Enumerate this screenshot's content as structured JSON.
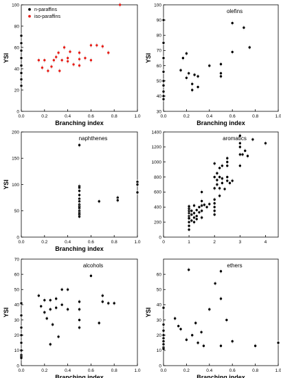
{
  "chart_data": [
    {
      "type": "scatter",
      "title": "",
      "xlabel": "Branching index",
      "ylabel": "YSI",
      "xlim": [
        0,
        1.0
      ],
      "ylim": [
        0,
        100
      ],
      "xticks": [
        "0.0",
        "0.2",
        "0.4",
        "0.6",
        "0.8",
        "1.0"
      ],
      "yticks": [
        "0",
        "20",
        "40",
        "60",
        "80",
        "100"
      ],
      "legend_position": "top-left",
      "series": [
        {
          "name": "n-paraffins",
          "color": "#000000",
          "x": [
            0,
            0,
            0,
            0,
            0,
            0,
            0,
            0
          ],
          "y": [
            24,
            30,
            36,
            43,
            50,
            57,
            64,
            71
          ]
        },
        {
          "name": "iso-paraffins",
          "color": "#e8201a",
          "x": [
            0.15,
            0.18,
            0.2,
            0.23,
            0.26,
            0.28,
            0.3,
            0.32,
            0.33,
            0.35,
            0.37,
            0.4,
            0.4,
            0.42,
            0.45,
            0.5,
            0.5,
            0.5,
            0.55,
            0.6,
            0.6,
            0.65,
            0.7,
            0.75,
            0.85
          ],
          "y": [
            48,
            41,
            48,
            38,
            42,
            48,
            51,
            55,
            38,
            48,
            60,
            47,
            50,
            56,
            44,
            43,
            49,
            55,
            50,
            48,
            62,
            62,
            61,
            55,
            100
          ]
        }
      ]
    },
    {
      "type": "scatter",
      "title": "olefins",
      "xlabel": "Branching index",
      "ylabel": "YSI",
      "xlim": [
        0,
        1.0
      ],
      "ylim": [
        30,
        100
      ],
      "xticks": [
        "0.0",
        "0.2",
        "0.4",
        "0.6",
        "0.8",
        "1.0"
      ],
      "yticks": [
        "30",
        "40",
        "50",
        "60",
        "70",
        "80",
        "90",
        "100"
      ],
      "series": [
        {
          "name": "",
          "color": "#000000",
          "x": [
            0,
            0,
            0,
            0,
            0,
            0,
            0,
            0,
            0,
            0.15,
            0.17,
            0.2,
            0.2,
            0.22,
            0.25,
            0.25,
            0.27,
            0.3,
            0.3,
            0.4,
            0.5,
            0.5,
            0.5,
            0.6,
            0.6,
            0.7,
            0.75
          ],
          "y": [
            90,
            75,
            65,
            56,
            50,
            47,
            43,
            40,
            38,
            57,
            65,
            68,
            52,
            55,
            48,
            44,
            54,
            53,
            46,
            60,
            61,
            55,
            53,
            88,
            69,
            85,
            72
          ]
        }
      ]
    },
    {
      "type": "scatter",
      "title": "naphthenes",
      "xlabel": "Branching index",
      "ylabel": "YSI",
      "xlim": [
        0,
        1.0
      ],
      "ylim": [
        0,
        200
      ],
      "xticks": [
        "0.0",
        "0.2",
        "0.4",
        "0.6",
        "0.8",
        "1.0"
      ],
      "yticks": [
        "0",
        "50",
        "100",
        "150",
        "200"
      ],
      "series": [
        {
          "name": "",
          "color": "#000000",
          "x": [
            0.5,
            0.5,
            0.5,
            0.5,
            0.5,
            0.5,
            0.5,
            0.5,
            0.5,
            0.5,
            0.5,
            0.5,
            0.5,
            0.5,
            0.67,
            0.83,
            0.83,
            1.0,
            1.0,
            1.0
          ],
          "y": [
            175,
            97,
            94,
            88,
            80,
            73,
            68,
            62,
            58,
            55,
            50,
            46,
            43,
            39,
            68,
            75,
            70,
            105,
            100,
            85
          ]
        }
      ]
    },
    {
      "type": "scatter",
      "title": "aromatics",
      "xlabel": "",
      "ylabel": "",
      "xlim": [
        0,
        4.5
      ],
      "ylim": [
        0,
        1400
      ],
      "xticks": [
        "0",
        "1",
        "2",
        "3",
        "4"
      ],
      "yticks": [
        "0",
        "200",
        "400",
        "600",
        "800",
        "1000",
        "1200",
        "1400"
      ],
      "series": [
        {
          "name": "",
          "color": "#000000",
          "x": [
            1.0,
            1.0,
            1.0,
            1.0,
            1.0,
            1.0,
            1.0,
            1.0,
            1.0,
            1.0,
            1.1,
            1.1,
            1.1,
            1.2,
            1.2,
            1.2,
            1.2,
            1.3,
            1.3,
            1.3,
            1.4,
            1.4,
            1.5,
            1.5,
            1.5,
            1.5,
            1.5,
            1.6,
            1.7,
            1.8,
            2.0,
            2.0,
            2.0,
            2.0,
            2.0,
            2.0,
            2.0,
            2.0,
            2.1,
            2.1,
            2.1,
            2.2,
            2.2,
            2.2,
            2.2,
            2.3,
            2.3,
            2.3,
            2.4,
            2.5,
            2.5,
            2.5,
            2.5,
            2.5,
            2.6,
            2.7,
            3.0,
            3.0,
            3.0,
            3.0,
            3.0,
            3.1,
            3.2,
            3.3,
            3.5,
            4.0
          ],
          "y": [
            100,
            150,
            200,
            250,
            280,
            320,
            350,
            380,
            410,
            250,
            300,
            220,
            350,
            200,
            260,
            320,
            420,
            280,
            360,
            240,
            330,
            400,
            260,
            350,
            420,
            480,
            600,
            430,
            400,
            440,
            300,
            350,
            400,
            450,
            500,
            650,
            800,
            980,
            700,
            760,
            850,
            550,
            650,
            800,
            920,
            720,
            780,
            950,
            640,
            750,
            800,
            950,
            1000,
            1050,
            720,
            750,
            1250,
            1350,
            1200,
            1100,
            950,
            1100,
            1150,
            1080,
            1300,
            1250
          ]
        }
      ]
    },
    {
      "type": "scatter",
      "title": "alcohols",
      "xlabel": "Branching index",
      "ylabel": "YSI",
      "xlim": [
        0,
        1.0
      ],
      "ylim": [
        0,
        70
      ],
      "xticks": [
        "0.0",
        "0.2",
        "0.4",
        "0.6",
        "0.8",
        "1.0"
      ],
      "yticks": [
        "0",
        "10",
        "20",
        "30",
        "40",
        "50",
        "60",
        "70"
      ],
      "series": [
        {
          "name": "",
          "color": "#000000",
          "x": [
            0,
            0,
            0,
            0,
            0,
            0,
            0,
            0,
            0,
            0.15,
            0.17,
            0.2,
            0.2,
            0.22,
            0.25,
            0.25,
            0.25,
            0.27,
            0.3,
            0.3,
            0.32,
            0.35,
            0.35,
            0.4,
            0.4,
            0.5,
            0.5,
            0.5,
            0.5,
            0.6,
            0.67,
            0.7,
            0.7,
            0.75,
            0.8
          ],
          "y": [
            41,
            33,
            25,
            20,
            15,
            10,
            7,
            6,
            5,
            46,
            39,
            43,
            35,
            31,
            43,
            37,
            14,
            27,
            44,
            38,
            19,
            50,
            40,
            50,
            37,
            42,
            37,
            30,
            25,
            59,
            28,
            46,
            42,
            41,
            41
          ]
        }
      ]
    },
    {
      "type": "scatter",
      "title": "ethers",
      "xlabel": "Branching index",
      "ylabel": "YSI",
      "xlim": [
        0,
        1.0
      ],
      "ylim": [
        0,
        70
      ],
      "xticks": [
        "0.0",
        "0.2",
        "0.4",
        "0.6",
        "0.8",
        "1.0"
      ],
      "yticks": [
        "0",
        "10",
        "20",
        "30",
        "40",
        "50",
        "60"
      ],
      "series": [
        {
          "name": "",
          "color": "#000000",
          "x": [
            0,
            0,
            0,
            0,
            0,
            0,
            0,
            0,
            0,
            0.1,
            0.13,
            0.15,
            0.2,
            0.22,
            0.25,
            0.28,
            0.3,
            0.33,
            0.35,
            0.4,
            0.45,
            0.5,
            0.5,
            0.5,
            0.55,
            0.6,
            0.8,
            1.0
          ],
          "y": [
            38,
            27,
            23,
            20,
            18,
            16,
            14,
            12,
            11,
            31,
            26,
            24,
            17,
            63,
            20,
            28,
            15,
            22,
            13,
            37,
            54,
            62,
            44,
            13,
            30,
            16,
            13,
            15
          ]
        }
      ]
    }
  ]
}
